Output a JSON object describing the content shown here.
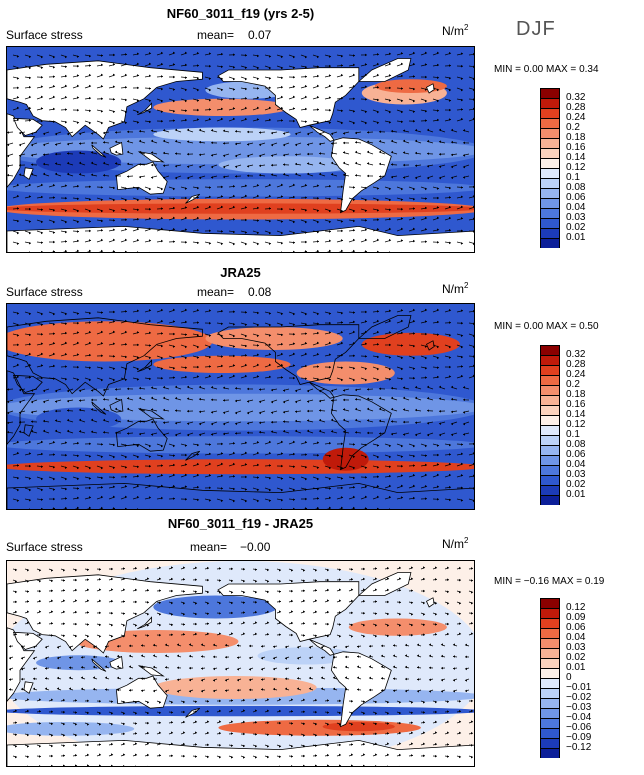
{
  "season": "DJF",
  "panels": [
    {
      "title": "NF60_3011_f19 (yrs 2-5)",
      "variable": "Surface stress",
      "mean_label": "mean=",
      "mean_value": "0.07",
      "units": "N/m",
      "units_sup": "2",
      "min_label": "MIN =",
      "min_value": "0.00",
      "max_label": "MAX =",
      "max_value": "0.34",
      "colorbar_labels": [
        "0.32",
        "0.28",
        "0.24",
        "0.2",
        "0.18",
        "0.16",
        "0.14",
        "0.12",
        "0.1",
        "0.08",
        "0.06",
        "0.04",
        "0.03",
        "0.02",
        "0.01"
      ],
      "colorbar_colors": [
        "#8b0000",
        "#c01a0a",
        "#e0401f",
        "#ee6a43",
        "#f48e6c",
        "#f8b295",
        "#fbd2bd",
        "#fdf0e8",
        "#dfe9fb",
        "#bcd2f7",
        "#96b5f0",
        "#6f95e6",
        "#4d77dc",
        "#2f58cf",
        "#1c3bb8",
        "#0c1f99"
      ]
    },
    {
      "title": "JRA25",
      "variable": "Surface stress",
      "mean_label": "mean=",
      "mean_value": "0.08",
      "units": "N/m",
      "units_sup": "2",
      "min_label": "MIN =",
      "min_value": "0.00",
      "max_label": "MAX =",
      "max_value": "0.50",
      "colorbar_labels": [
        "0.32",
        "0.28",
        "0.24",
        "0.2",
        "0.18",
        "0.16",
        "0.14",
        "0.12",
        "0.1",
        "0.08",
        "0.06",
        "0.04",
        "0.03",
        "0.02",
        "0.01"
      ],
      "colorbar_colors": [
        "#8b0000",
        "#c01a0a",
        "#e0401f",
        "#ee6a43",
        "#f48e6c",
        "#f8b295",
        "#fbd2bd",
        "#fdf0e8",
        "#dfe9fb",
        "#bcd2f7",
        "#96b5f0",
        "#6f95e6",
        "#4d77dc",
        "#2f58cf",
        "#1c3bb8",
        "#0c1f99"
      ]
    },
    {
      "title": "NF60_3011_f19 - JRA25",
      "variable": "Surface stress",
      "mean_label": "mean=",
      "mean_value": "−0.00",
      "units": "N/m",
      "units_sup": "2",
      "min_label": "MIN =",
      "min_value": "−0.16",
      "max_label": "MAX =",
      "max_value": "0.19",
      "colorbar_labels": [
        "0.12",
        "0.09",
        "0.06",
        "0.04",
        "0.03",
        "0.02",
        "0.01",
        "0",
        "−0.01",
        "−0.02",
        "−0.03",
        "−0.04",
        "−0.06",
        "−0.09",
        "−0.12"
      ],
      "colorbar_colors": [
        "#8b0000",
        "#c01a0a",
        "#e0401f",
        "#ee6a43",
        "#f48e6c",
        "#f8b295",
        "#fbd2bd",
        "#fdf0e8",
        "#dfe9fb",
        "#bcd2f7",
        "#96b5f0",
        "#6f95e6",
        "#4d77dc",
        "#2f58cf",
        "#1c3bb8",
        "#0c1f99"
      ]
    }
  ]
}
